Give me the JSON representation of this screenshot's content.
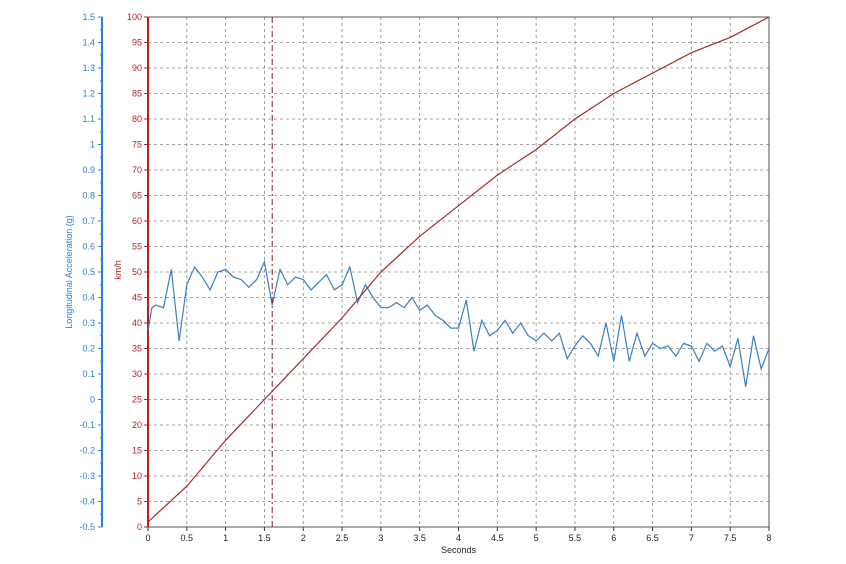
{
  "chart_data": {
    "type": "line",
    "xlabel": "Seconds",
    "y_left_label": "Longitudinal Acceleration (g)",
    "y_right_label": "km/h",
    "xlim": [
      0,
      8
    ],
    "x_ticks": [
      "0",
      "0.5",
      "1",
      "1.5",
      "2",
      "2.5",
      "3",
      "3.5",
      "4",
      "4.5",
      "5",
      "5.5",
      "6",
      "6.5",
      "7",
      "7.5",
      "8"
    ],
    "y_left_lim": [
      -0.5,
      1.5
    ],
    "y_left_ticks": [
      "-0.5",
      "-0.4",
      "-0.3",
      "-0.2",
      "-0.1",
      "0",
      "0.1",
      "0.2",
      "0.3",
      "0.4",
      "0.5",
      "0.6",
      "0.7",
      "0.8",
      "0.9",
      "1",
      "1.1",
      "1.2",
      "1.3",
      "1.4",
      "1.5"
    ],
    "y_right_lim": [
      0,
      100
    ],
    "y_right_ticks": [
      "0",
      "5",
      "10",
      "15",
      "20",
      "25",
      "30",
      "35",
      "40",
      "45",
      "50",
      "55",
      "60",
      "65",
      "70",
      "75",
      "80",
      "85",
      "90",
      "95",
      "100"
    ],
    "grid": true,
    "cursor_x": 1.6,
    "colors": {
      "acceleration": "#3a7fc1",
      "speed": "#a52a2a",
      "left_axis": "#2a7fd4",
      "right_axis": "#b22222",
      "grid": "#888888",
      "cursor": "#8b1a1a"
    },
    "series": [
      {
        "axis": "left",
        "x": [
          0.0,
          0.05,
          0.1,
          0.2,
          0.3,
          0.4,
          0.5,
          0.6,
          0.7,
          0.8,
          0.9,
          1.0,
          1.1,
          1.2,
          1.3,
          1.4,
          1.5,
          1.6,
          1.7,
          1.8,
          1.9,
          2.0,
          2.1,
          2.2,
          2.3,
          2.4,
          2.5,
          2.6,
          2.7,
          2.8,
          2.9,
          3.0,
          3.1,
          3.2,
          3.3,
          3.4,
          3.5,
          3.6,
          3.7,
          3.8,
          3.9,
          4.0,
          4.1,
          4.2,
          4.3,
          4.4,
          4.5,
          4.6,
          4.7,
          4.8,
          4.9,
          5.0,
          5.1,
          5.2,
          5.3,
          5.4,
          5.5,
          5.6,
          5.7,
          5.8,
          5.9,
          6.0,
          6.1,
          6.2,
          6.3,
          6.4,
          6.5,
          6.6,
          6.7,
          6.8,
          6.9,
          7.0,
          7.1,
          7.2,
          7.3,
          7.4,
          7.5,
          7.6,
          7.7,
          7.8,
          7.9,
          8.0
        ],
        "values": [
          0.27,
          0.36,
          0.37,
          0.36,
          0.51,
          0.23,
          0.45,
          0.52,
          0.48,
          0.43,
          0.5,
          0.51,
          0.48,
          0.47,
          0.44,
          0.47,
          0.54,
          0.37,
          0.51,
          0.45,
          0.48,
          0.47,
          0.43,
          0.46,
          0.49,
          0.43,
          0.45,
          0.52,
          0.38,
          0.45,
          0.4,
          0.36,
          0.36,
          0.38,
          0.36,
          0.4,
          0.35,
          0.37,
          0.33,
          0.31,
          0.28,
          0.28,
          0.39,
          0.19,
          0.31,
          0.25,
          0.27,
          0.31,
          0.26,
          0.3,
          0.25,
          0.23,
          0.26,
          0.23,
          0.26,
          0.16,
          0.21,
          0.25,
          0.22,
          0.17,
          0.3,
          0.15,
          0.33,
          0.15,
          0.26,
          0.17,
          0.22,
          0.2,
          0.21,
          0.17,
          0.22,
          0.21,
          0.15,
          0.22,
          0.19,
          0.21,
          0.13,
          0.24,
          0.05,
          0.25,
          0.12,
          0.2
        ]
      },
      {
        "axis": "right",
        "x": [
          0,
          0.5,
          1.0,
          1.5,
          2.0,
          2.5,
          3.0,
          3.5,
          4.0,
          4.5,
          5.0,
          5.5,
          6.0,
          6.5,
          7.0,
          7.5,
          8.0
        ],
        "values": [
          1,
          8,
          17,
          25,
          33,
          41,
          50,
          57,
          63,
          69,
          74,
          80,
          85,
          89,
          93,
          96,
          100
        ]
      }
    ]
  }
}
